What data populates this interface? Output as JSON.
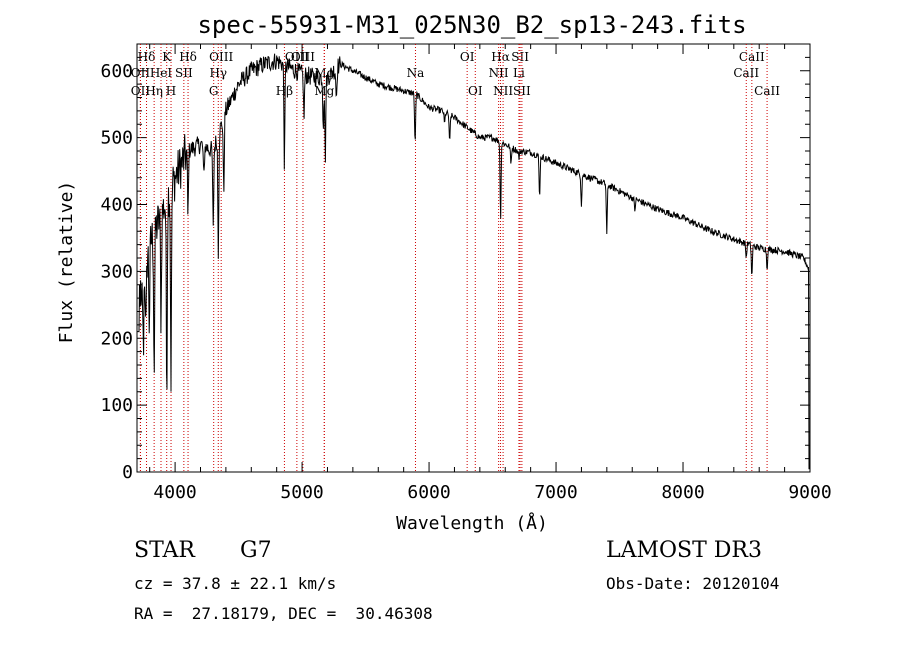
{
  "chart_data": {
    "type": "line",
    "title": "spec-55931-M31_025N30_B2_sp13-243.fits",
    "xlabel": "Wavelength (Å)",
    "ylabel": "Flux (relative)",
    "xlim": [
      3700,
      9000
    ],
    "ylim": [
      0,
      640
    ],
    "xticks": [
      4000,
      5000,
      6000,
      7000,
      8000,
      9000
    ],
    "yticks": [
      0,
      100,
      200,
      300,
      400,
      500,
      600
    ],
    "spectrum": {
      "continuum": [
        [
          3700,
          250
        ],
        [
          3800,
          340
        ],
        [
          3900,
          390
        ],
        [
          4000,
          440
        ],
        [
          4100,
          480
        ],
        [
          4200,
          490
        ],
        [
          4300,
          480
        ],
        [
          4400,
          540
        ],
        [
          4500,
          580
        ],
        [
          4600,
          600
        ],
        [
          4700,
          610
        ],
        [
          4800,
          615
        ],
        [
          4900,
          605
        ],
        [
          5000,
          595
        ],
        [
          5100,
          590
        ],
        [
          5200,
          590
        ],
        [
          5300,
          610
        ],
        [
          5400,
          600
        ],
        [
          5500,
          590
        ],
        [
          5600,
          580
        ],
        [
          5700,
          575
        ],
        [
          5800,
          570
        ],
        [
          5900,
          565
        ],
        [
          6000,
          545
        ],
        [
          6100,
          540
        ],
        [
          6200,
          530
        ],
        [
          6300,
          515
        ],
        [
          6400,
          500
        ],
        [
          6500,
          500
        ],
        [
          6600,
          490
        ],
        [
          6700,
          480
        ],
        [
          6800,
          478
        ],
        [
          6900,
          470
        ],
        [
          7000,
          462
        ],
        [
          7200,
          445
        ],
        [
          7400,
          430
        ],
        [
          7600,
          410
        ],
        [
          7800,
          393
        ],
        [
          8000,
          380
        ],
        [
          8200,
          362
        ],
        [
          8400,
          348
        ],
        [
          8600,
          335
        ],
        [
          8800,
          330
        ],
        [
          8950,
          320
        ],
        [
          9000,
          300
        ]
      ],
      "absorption": [
        [
          3734,
          230
        ],
        [
          3750,
          180
        ],
        [
          3770,
          200
        ],
        [
          3797,
          220
        ],
        [
          3835,
          150
        ],
        [
          3889,
          230
        ],
        [
          3934,
          120
        ],
        [
          3968,
          140
        ],
        [
          4101,
          380
        ],
        [
          4226,
          440
        ],
        [
          4300,
          360
        ],
        [
          4340,
          330
        ],
        [
          4383,
          420
        ],
        [
          4861,
          460
        ],
        [
          5015,
          530
        ],
        [
          5167,
          520
        ],
        [
          5183,
          470
        ],
        [
          5270,
          560
        ],
        [
          5890,
          490
        ],
        [
          6122,
          520
        ],
        [
          6162,
          490
        ],
        [
          6563,
          380
        ],
        [
          6645,
          460
        ],
        [
          6708,
          470
        ],
        [
          6870,
          410
        ],
        [
          7200,
          400
        ],
        [
          7400,
          355
        ],
        [
          7620,
          390
        ],
        [
          8498,
          320
        ],
        [
          8542,
          290
        ],
        [
          8662,
          305
        ]
      ]
    },
    "lines": [
      {
        "name": "Hδ",
        "wave": 3775,
        "row": 0
      },
      {
        "name": "OII",
        "wave": 3727,
        "row": 1
      },
      {
        "name": "OII",
        "wave": 3727,
        "row": 2
      },
      {
        "name": "K",
        "wave": 3934,
        "row": 0
      },
      {
        "name": "HeI",
        "wave": 3889,
        "row": 1
      },
      {
        "name": "Hη",
        "wave": 3835,
        "row": 2
      },
      {
        "name": "SII",
        "wave": 4069,
        "row": 1
      },
      {
        "name": "H",
        "wave": 3968,
        "row": 2
      },
      {
        "name": "Hδ",
        "wave": 4102,
        "row": 0
      },
      {
        "name": "OIII",
        "wave": 4363,
        "row": 0
      },
      {
        "name": "Hγ",
        "wave": 4340,
        "row": 1
      },
      {
        "name": "G",
        "wave": 4304,
        "row": 2
      },
      {
        "name": "OIII",
        "wave": 4959,
        "row": 0
      },
      {
        "name": "OIII",
        "wave": 5007,
        "row": 0
      },
      {
        "name": "Mg",
        "wave": 5175,
        "row": 1
      },
      {
        "name": "Hβ",
        "wave": 4861,
        "row": 2
      },
      {
        "name": "Mg",
        "wave": 5175,
        "row": 2
      },
      {
        "name": "Na",
        "wave": 5893,
        "row": 1
      },
      {
        "name": "OI",
        "wave": 6300,
        "row": 0
      },
      {
        "name": "OI",
        "wave": 6364,
        "row": 2
      },
      {
        "name": "Hα",
        "wave": 6563,
        "row": 0
      },
      {
        "name": "SII",
        "wave": 6717,
        "row": 0
      },
      {
        "name": "NII",
        "wave": 6548,
        "row": 1
      },
      {
        "name": "Li",
        "wave": 6708,
        "row": 1
      },
      {
        "name": "NII",
        "wave": 6583,
        "row": 2
      },
      {
        "name": "SII",
        "wave": 6731,
        "row": 2
      },
      {
        "name": "CaII",
        "wave": 8542,
        "row": 0
      },
      {
        "name": "CaII",
        "wave": 8498,
        "row": 1
      },
      {
        "name": "CaII",
        "wave": 8662,
        "row": 2
      }
    ]
  },
  "info": {
    "object_class": "STAR",
    "subclass": "G7",
    "survey": "LAMOST DR3",
    "redshift_line": "cz = 37.8 ± 22.1 km/s",
    "obs_date_line": "Obs-Date: 20120104",
    "coords_line": "RA =  27.18179, DEC =  30.46308"
  },
  "colors": {
    "axis": "#000000",
    "spectrum": "#000000",
    "line_marker": "#cc0000"
  }
}
